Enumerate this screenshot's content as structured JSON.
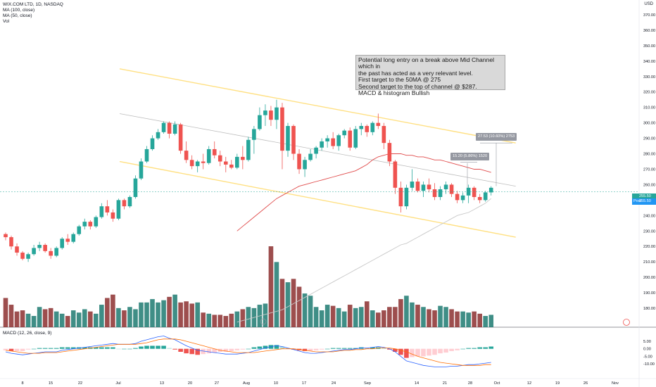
{
  "header": {
    "line1": "WIX.COM LTD, 1D, NASDAQ",
    "line2": "MA (100, close)",
    "line3": "MA (50, close)",
    "line4": "Vol",
    "macd": "MACD (12, 26, close, 9)"
  },
  "currency": "USD",
  "annotation": {
    "l1": "Potential long entry on a break above Mid Channel which in",
    "l2": "the past has acted as a very relevant level.",
    "l3": "First target to the 50MA @ 275",
    "l4": "Second target to the top of channel @ $287.",
    "l5": "MACD & histogram Bullish"
  },
  "measure1": "15.20 (5.86%) 1520",
  "measure2": "27.53 (10.60%) 2753",
  "price_label": {
    "prefix": "Post",
    "value": "255.50"
  },
  "last_label": "255.50",
  "colors": {
    "up": "#26a69a",
    "down": "#ef5350",
    "ma100": "#c8c8c8",
    "ma50": "#e04a4a",
    "channel": "#ffe082",
    "mid": "#bdbdbd",
    "macd": "#2962ff",
    "signal": "#ff6d00"
  },
  "chart_data": {
    "type": "candlestick",
    "price_axis": {
      "ylim": [
        170,
        375
      ],
      "ticks": [
        "370.00",
        "360.00",
        "350.00",
        "340.00",
        "330.00",
        "320.00",
        "310.00",
        "300.00",
        "290.00",
        "280.00",
        "270.00",
        "260.00",
        "250.00",
        "240.00",
        "230.00",
        "220.00",
        "210.00",
        "200.00",
        "190.00",
        "180.00"
      ]
    },
    "macd_axis": {
      "ylim": [
        -16,
        12
      ],
      "ticks": [
        "5.00",
        "0.00",
        "-5.00",
        "-10.00"
      ]
    },
    "x_labels": [
      "8",
      "15",
      "22",
      "Jul",
      "13",
      "20",
      "27",
      "Aug",
      "10",
      "17",
      "24",
      "Sep",
      "14",
      "21",
      "28",
      "Oct",
      "12",
      "19",
      "26",
      "Nov"
    ],
    "candles": [
      [
        228,
        229,
        224,
        226
      ],
      [
        226,
        227,
        218,
        220
      ],
      [
        220,
        222,
        214,
        216
      ],
      [
        216,
        217,
        211,
        212
      ],
      [
        212,
        216,
        210,
        215
      ],
      [
        215,
        221,
        214,
        219
      ],
      [
        219,
        223,
        217,
        221
      ],
      [
        221,
        222,
        216,
        217
      ],
      [
        217,
        219,
        212,
        214
      ],
      [
        214,
        220,
        213,
        219
      ],
      [
        219,
        226,
        218,
        225
      ],
      [
        225,
        228,
        221,
        223
      ],
      [
        223,
        229,
        222,
        228
      ],
      [
        228,
        234,
        227,
        233
      ],
      [
        233,
        238,
        231,
        236
      ],
      [
        236,
        237,
        231,
        233
      ],
      [
        233,
        240,
        232,
        239
      ],
      [
        239,
        248,
        238,
        246
      ],
      [
        246,
        250,
        240,
        242
      ],
      [
        242,
        244,
        236,
        238
      ],
      [
        238,
        251,
        237,
        250
      ],
      [
        250,
        251,
        244,
        246
      ],
      [
        246,
        253,
        245,
        252
      ],
      [
        252,
        266,
        251,
        264
      ],
      [
        264,
        277,
        263,
        275
      ],
      [
        275,
        285,
        274,
        283
      ],
      [
        283,
        292,
        282,
        290
      ],
      [
        290,
        296,
        289,
        294
      ],
      [
        294,
        301,
        293,
        300
      ],
      [
        300,
        301,
        290,
        293
      ],
      [
        293,
        301,
        292,
        299
      ],
      [
        299,
        300,
        280,
        282
      ],
      [
        282,
        288,
        274,
        276
      ],
      [
        276,
        279,
        270,
        272
      ],
      [
        272,
        276,
        268,
        275
      ],
      [
        275,
        280,
        270,
        274
      ],
      [
        274,
        285,
        273,
        283
      ],
      [
        283,
        288,
        277,
        279
      ],
      [
        279,
        282,
        272,
        275
      ],
      [
        275,
        278,
        268,
        273
      ],
      [
        273,
        276,
        270,
        271
      ],
      [
        271,
        280,
        270,
        278
      ],
      [
        278,
        285,
        270,
        276
      ],
      [
        276,
        291,
        275,
        289
      ],
      [
        289,
        298,
        280,
        296
      ],
      [
        296,
        310,
        295,
        305
      ],
      [
        305,
        312,
        298,
        308
      ],
      [
        308,
        311,
        298,
        302
      ],
      [
        302,
        315,
        296,
        310
      ],
      [
        310,
        313,
        270,
        282
      ],
      [
        282,
        300,
        278,
        298
      ],
      [
        298,
        299,
        276,
        280
      ],
      [
        280,
        283,
        267,
        270
      ],
      [
        270,
        278,
        265,
        276
      ],
      [
        276,
        283,
        275,
        280
      ],
      [
        280,
        285,
        277,
        284
      ],
      [
        284,
        290,
        282,
        288
      ],
      [
        288,
        292,
        284,
        290
      ],
      [
        290,
        294,
        283,
        285
      ],
      [
        285,
        293,
        282,
        292
      ],
      [
        292,
        296,
        290,
        295
      ],
      [
        295,
        297,
        282,
        284
      ],
      [
        284,
        298,
        283,
        296
      ],
      [
        296,
        300,
        292,
        298
      ],
      [
        298,
        299,
        291,
        294
      ],
      [
        294,
        301,
        292,
        300
      ],
      [
        300,
        306,
        296,
        298
      ],
      [
        298,
        300,
        283,
        287
      ],
      [
        287,
        289,
        272,
        275
      ],
      [
        275,
        276,
        254,
        258
      ],
      [
        258,
        262,
        242,
        246
      ],
      [
        246,
        260,
        244,
        258
      ],
      [
        258,
        270,
        256,
        262
      ],
      [
        262,
        264,
        255,
        256
      ],
      [
        256,
        262,
        252,
        260
      ],
      [
        260,
        264,
        255,
        257
      ],
      [
        257,
        261,
        250,
        252
      ],
      [
        252,
        259,
        250,
        257
      ],
      [
        257,
        262,
        254,
        260
      ],
      [
        260,
        261,
        252,
        254
      ],
      [
        254,
        256,
        248,
        250
      ],
      [
        250,
        255,
        248,
        253
      ],
      [
        253,
        260,
        248,
        258
      ],
      [
        258,
        259,
        250,
        252
      ],
      [
        252,
        254,
        248,
        250
      ],
      [
        250,
        256,
        249,
        255
      ],
      [
        255,
        259,
        253,
        258
      ]
    ],
    "volume": [
      26,
      20,
      14,
      15,
      12,
      10,
      18,
      16,
      17,
      14,
      12,
      10,
      15,
      13,
      16,
      14,
      12,
      20,
      26,
      29,
      17,
      15,
      18,
      16,
      22,
      22,
      25,
      22,
      24,
      27,
      29,
      22,
      23,
      21,
      22,
      13,
      12,
      11,
      11,
      10,
      12,
      14,
      16,
      18,
      17,
      20,
      21,
      72,
      58,
      43,
      40,
      43,
      36,
      30,
      28,
      18,
      15,
      20,
      19,
      17,
      14,
      20,
      17,
      18,
      23,
      15,
      13,
      15,
      18,
      18,
      25,
      28,
      22,
      20,
      18,
      16,
      15,
      19,
      18,
      16,
      14,
      14,
      13,
      14,
      12,
      10,
      11
    ],
    "ma100": [
      null,
      null,
      null,
      null,
      null,
      null,
      null,
      null,
      null,
      null,
      null,
      null,
      null,
      null,
      null,
      null,
      null,
      null,
      null,
      null,
      null,
      null,
      null,
      null,
      null,
      null,
      null,
      null,
      null,
      null,
      null,
      null,
      null,
      null,
      null,
      null,
      null,
      null,
      null,
      null,
      null,
      171,
      172,
      173,
      174,
      175,
      176,
      177,
      178,
      179,
      181,
      183,
      185,
      187,
      189,
      191,
      193,
      195,
      197,
      199,
      201,
      203,
      205,
      207,
      209,
      211,
      213,
      215,
      217,
      219,
      221,
      222,
      224,
      226,
      228,
      230,
      232,
      234,
      236,
      238,
      240,
      241,
      242,
      244,
      246,
      248,
      251
    ],
    "ma50": [
      null,
      null,
      null,
      null,
      null,
      null,
      null,
      null,
      null,
      null,
      null,
      null,
      null,
      null,
      null,
      null,
      null,
      null,
      null,
      null,
      null,
      null,
      null,
      null,
      null,
      null,
      null,
      null,
      null,
      null,
      null,
      null,
      null,
      null,
      null,
      null,
      null,
      null,
      null,
      null,
      null,
      230,
      233,
      236,
      239,
      242,
      245,
      248,
      251,
      253,
      255,
      257,
      259,
      260,
      261,
      262,
      263,
      264,
      265,
      266,
      267,
      268,
      269,
      271,
      273,
      276,
      278,
      279,
      280,
      280,
      280,
      279,
      279,
      278,
      278,
      277,
      276,
      276,
      275,
      274,
      273,
      272,
      271,
      270,
      270,
      269,
      268
    ],
    "macd": [
      -2,
      -3,
      -3.5,
      -4,
      -3.5,
      -3,
      -2.5,
      -2,
      -2,
      -2,
      -1,
      -0.5,
      0,
      0.5,
      1,
      1.5,
      2,
      2.5,
      3,
      3.5,
      3,
      3,
      3,
      3.5,
      5,
      6,
      7,
      8,
      8.5,
      7,
      6,
      4,
      2,
      0.5,
      -1,
      -1.5,
      -2,
      -2.5,
      -3,
      -3.5,
      -3.5,
      -3.5,
      -3,
      -2.5,
      -1.5,
      -0.5,
      0.5,
      1.5,
      2,
      1.5,
      0.5,
      -0.5,
      -1.5,
      -2.5,
      -3,
      -3,
      -2.5,
      -2,
      -1.5,
      -1,
      -0.5,
      -0.5,
      0,
      0.5,
      0.5,
      1,
      1.5,
      1,
      0,
      -2,
      -5,
      -8,
      -9,
      -10,
      -11,
      -11.5,
      -12,
      -12,
      -12,
      -11.5,
      -11.5,
      -11,
      -10.5,
      -10.5,
      -10,
      -9.5,
      -9
    ],
    "signal": [
      -1,
      -1.5,
      -2,
      -2.5,
      -3,
      -3,
      -3,
      -2.5,
      -2.5,
      -2.5,
      -2,
      -1.5,
      -1,
      -0.5,
      0,
      0.5,
      1,
      1.5,
      2,
      2.5,
      3,
      3,
      3,
      3,
      3.5,
      4,
      5,
      6,
      6.5,
      6.5,
      6.5,
      6,
      5,
      4,
      3,
      2,
      1,
      0,
      -1,
      -1.5,
      -2,
      -2.5,
      -2.5,
      -2.5,
      -2.5,
      -2,
      -1.5,
      -1,
      -0.5,
      0,
      0,
      0,
      -0.5,
      -1,
      -1.5,
      -2,
      -2,
      -2,
      -2,
      -1.5,
      -1,
      -1,
      -0.5,
      -0.5,
      0,
      0,
      0.5,
      0.5,
      0.5,
      0,
      -1,
      -2,
      -3.5,
      -5,
      -6,
      -7,
      -8,
      -9,
      -9.5,
      -10,
      -10.5,
      -11,
      -11,
      -11,
      -11,
      -10.5,
      -10.5
    ],
    "hist": [
      -1,
      -1.5,
      -1.5,
      -1.5,
      -0.5,
      0,
      0.5,
      0.5,
      0.5,
      0.5,
      1,
      1,
      1,
      1,
      1,
      1,
      1,
      1,
      1,
      1,
      0,
      0,
      0,
      0.5,
      1.5,
      2,
      2,
      2,
      2,
      0.5,
      -0.5,
      -2,
      -3,
      -3.5,
      -4,
      -3.5,
      -3,
      -2.5,
      -2,
      -2,
      -1.5,
      -1,
      -0.5,
      0,
      1,
      1.5,
      2,
      2.5,
      2.5,
      1.5,
      0.5,
      -0.5,
      -1,
      -1.5,
      -1.5,
      -1,
      -0.5,
      0,
      0.5,
      0.5,
      0.5,
      0.5,
      0.5,
      1,
      0.5,
      1,
      1,
      0.5,
      -0.5,
      -2,
      -4,
      -6,
      -5.5,
      -5,
      -5,
      -4.5,
      -4,
      -3,
      -2.5,
      -1.5,
      -1,
      0,
      0.5,
      0.5,
      1,
      1,
      1.5
    ],
    "channel_upper": [
      [
        0,
        335
      ],
      [
        86,
        287
      ]
    ],
    "channel_lower": [
      [
        0,
        275
      ],
      [
        86,
        226
      ]
    ],
    "channel_mid": [
      [
        0,
        306
      ],
      [
        86,
        259
      ]
    ],
    "last_price": 255.5
  }
}
